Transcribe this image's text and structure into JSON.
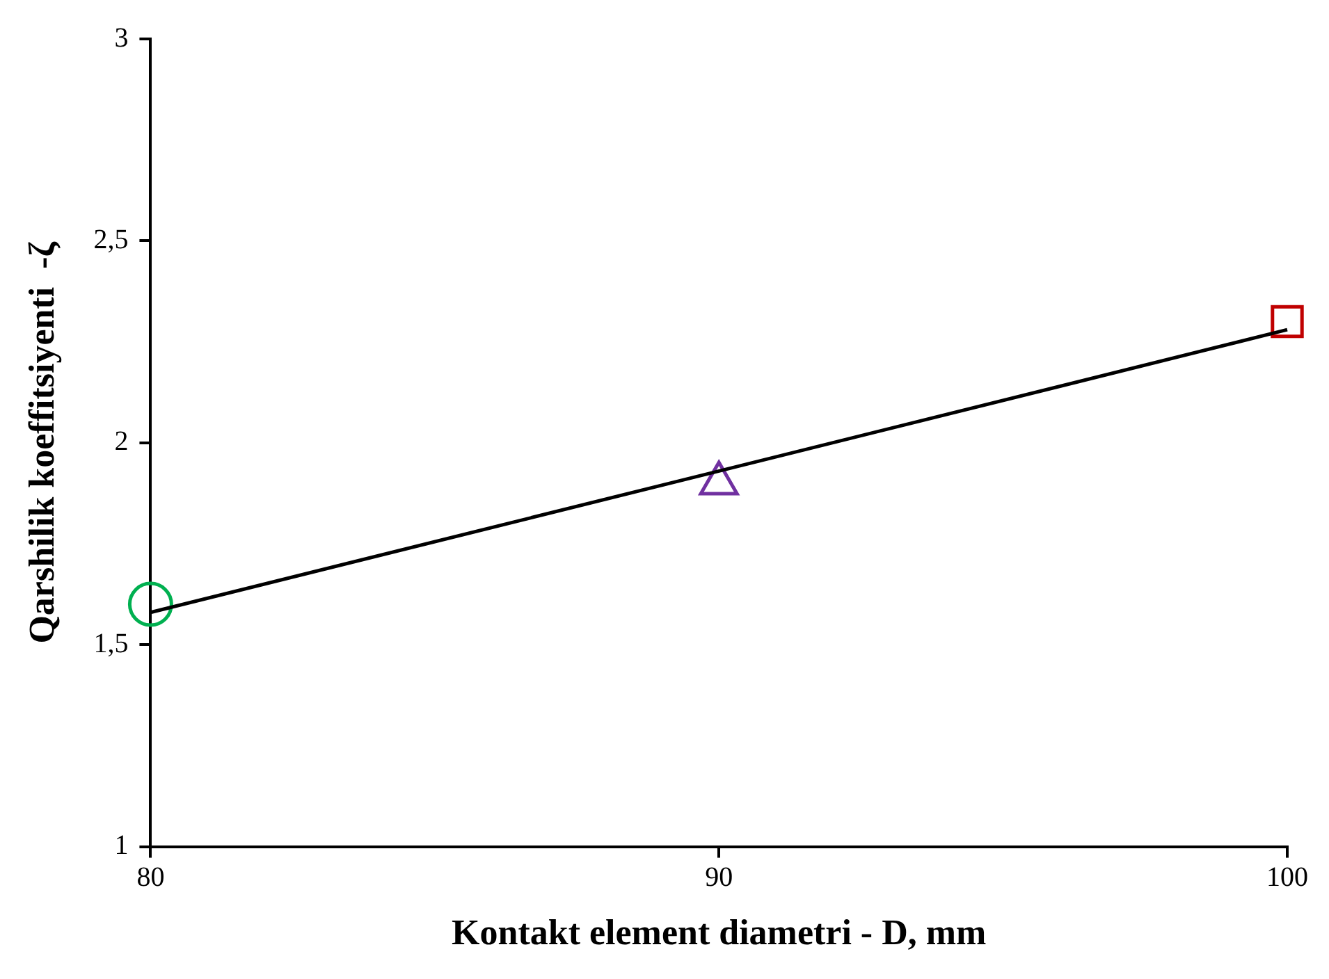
{
  "chart_data": {
    "type": "scatter",
    "xlabel": "Kontakt element diametri - D, mm",
    "ylabel": "Qarshilik koeffitsiyenti  -ζ",
    "xlim": [
      80,
      100
    ],
    "xticks": [
      80,
      90,
      100
    ],
    "ylim": [
      1,
      3
    ],
    "yticks": [
      1,
      {
        "value": 1.5,
        "label": "1,5"
      },
      2,
      {
        "value": 2.5,
        "label": "2,5"
      },
      3
    ],
    "grid": false,
    "legend": false,
    "series": [
      {
        "type": "line",
        "color": "#000000",
        "x": [
          80,
          100
        ],
        "values": [
          1.58,
          2.28
        ],
        "marker": "none",
        "line_style": "solid"
      },
      {
        "type": "scatter",
        "color": "#00b050",
        "x": [
          80
        ],
        "values": [
          1.6
        ],
        "marker": "circle"
      },
      {
        "type": "scatter",
        "color": "#7030a0",
        "x": [
          90
        ],
        "values": [
          1.9
        ],
        "marker": "triangle"
      },
      {
        "type": "scatter",
        "color": "#c00000",
        "x": [
          100
        ],
        "values": [
          2.3
        ],
        "marker": "square"
      }
    ]
  }
}
